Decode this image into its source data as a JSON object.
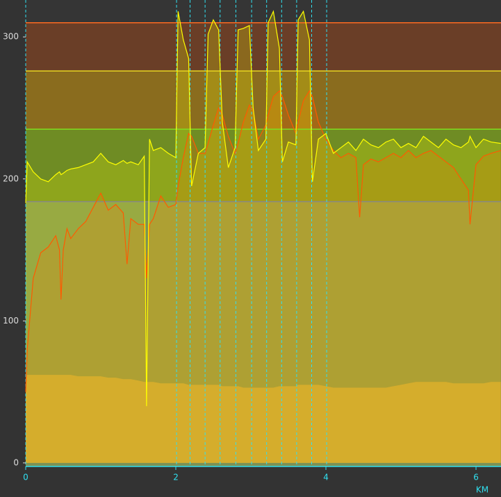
{
  "chart_data": {
    "type": "line",
    "x_label": "KM",
    "xlim": [
      0,
      6.333
    ],
    "ylim": [
      -2.5,
      326
    ],
    "xticks": [
      0,
      2,
      4,
      6
    ],
    "yticks": [
      0,
      100,
      200,
      300
    ],
    "background_fill": "#7c9255",
    "zone_lines": [
      {
        "value": 184,
        "color": "#888888",
        "fill": "#6f8c24"
      },
      {
        "value": 235,
        "color": "#7ee020",
        "fill": "#8a6c1e"
      },
      {
        "value": 276,
        "color": "#e8d820",
        "fill": "#6a3e27"
      },
      {
        "value": 310,
        "color": "#ff6a20",
        "fill": "#353535"
      }
    ],
    "interval_markers": [
      2.01,
      2.19,
      2.39,
      2.59,
      2.8,
      3.01,
      3.21,
      3.41,
      3.61,
      3.81,
      4.01
    ],
    "x": [
      0,
      0.02,
      0.1,
      0.2,
      0.3,
      0.4,
      0.45,
      0.47,
      0.5,
      0.55,
      0.6,
      0.7,
      0.8,
      0.9,
      1.0,
      1.1,
      1.2,
      1.3,
      1.35,
      1.4,
      1.5,
      1.58,
      1.61,
      1.65,
      1.7,
      1.8,
      1.9,
      2.0,
      2.03,
      2.1,
      2.17,
      2.21,
      2.3,
      2.39,
      2.43,
      2.5,
      2.57,
      2.62,
      2.7,
      2.79,
      2.83,
      2.9,
      2.98,
      3.03,
      3.1,
      3.2,
      3.23,
      3.3,
      3.38,
      3.42,
      3.5,
      3.6,
      3.63,
      3.7,
      3.78,
      3.82,
      3.9,
      4.0,
      4.1,
      4.2,
      4.3,
      4.4,
      4.45,
      4.5,
      4.6,
      4.7,
      4.8,
      4.9,
      5.0,
      5.1,
      5.2,
      5.3,
      5.4,
      5.5,
      5.6,
      5.7,
      5.8,
      5.9,
      5.92,
      6.0,
      6.1,
      6.2,
      6.33
    ],
    "series": [
      {
        "color": "#c8aa48",
        "kind": "area",
        "values": [
          62,
          62,
          62,
          62,
          62,
          62,
          62,
          62,
          62,
          62,
          62,
          61,
          61,
          61,
          61,
          60,
          60,
          59,
          59,
          59,
          58,
          57,
          57,
          57,
          57,
          56,
          56,
          56,
          56,
          56,
          55,
          55,
          55,
          55,
          55,
          55,
          55,
          54,
          54,
          54,
          54,
          53,
          53,
          53,
          53,
          53,
          53,
          53,
          54,
          54,
          54,
          54,
          55,
          55,
          55,
          55,
          55,
          54,
          53,
          53,
          53,
          53,
          53,
          53,
          53,
          53,
          53,
          54,
          55,
          56,
          57,
          57,
          57,
          57,
          57,
          56,
          56,
          56,
          56,
          56,
          56,
          57,
          57
        ]
      },
      {
        "color": "#ff5a00",
        "kind": "line",
        "values": [
          50,
          80,
          130,
          148,
          152,
          160,
          150,
          115,
          150,
          165,
          158,
          165,
          170,
          180,
          190,
          178,
          182,
          176,
          140,
          172,
          168,
          168,
          130,
          168,
          172,
          188,
          180,
          182,
          195,
          215,
          232,
          230,
          218,
          218,
          225,
          238,
          250,
          245,
          230,
          218,
          225,
          240,
          252,
          248,
          228,
          238,
          245,
          258,
          262,
          258,
          245,
          232,
          240,
          255,
          262,
          258,
          240,
          228,
          220,
          215,
          218,
          215,
          173,
          210,
          214,
          212,
          215,
          218,
          215,
          220,
          215,
          218,
          220,
          216,
          212,
          208,
          200,
          192,
          168,
          210,
          216,
          218,
          220
        ]
      },
      {
        "color": "#ffff00",
        "kind": "line",
        "values": [
          183,
          212,
          205,
          200,
          198,
          203,
          205,
          203,
          204,
          206,
          207,
          208,
          210,
          212,
          218,
          212,
          210,
          213,
          211,
          212,
          210,
          216,
          40,
          228,
          220,
          222,
          218,
          215,
          318,
          298,
          285,
          195,
          218,
          222,
          302,
          312,
          305,
          240,
          208,
          222,
          305,
          306,
          308,
          250,
          220,
          228,
          310,
          318,
          292,
          212,
          226,
          224,
          312,
          318,
          298,
          198,
          228,
          232,
          218,
          222,
          226,
          220,
          224,
          228,
          224,
          222,
          226,
          228,
          222,
          225,
          222,
          230,
          226,
          222,
          228,
          224,
          222,
          226,
          230,
          222,
          228,
          226,
          225
        ]
      }
    ]
  }
}
